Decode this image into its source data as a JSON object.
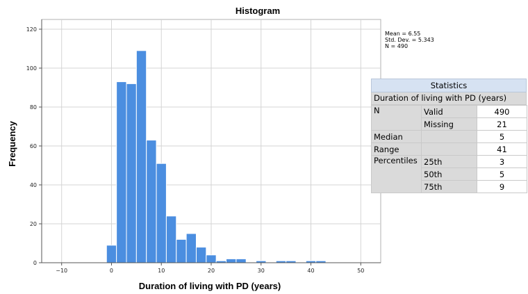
{
  "chart_data": {
    "type": "bar",
    "title": "Histogram",
    "xlabel": "Duration of living with PD (years)",
    "ylabel": "Frequency",
    "xlim": [
      -14,
      54
    ],
    "ylim": [
      0,
      125
    ],
    "xticks": [
      -10,
      0,
      10,
      20,
      30,
      40,
      50
    ],
    "yticks": [
      0,
      20,
      40,
      60,
      80,
      100,
      120
    ],
    "grid": "major, horizontal and vertical",
    "bar_color": "#4b8ee0",
    "bins": [
      {
        "x0": -1,
        "x1": 1,
        "count": 9
      },
      {
        "x0": 1,
        "x1": 3,
        "count": 93
      },
      {
        "x0": 3,
        "x1": 5,
        "count": 92
      },
      {
        "x0": 5,
        "x1": 7,
        "count": 109
      },
      {
        "x0": 7,
        "x1": 9,
        "count": 63
      },
      {
        "x0": 9,
        "x1": 11,
        "count": 51
      },
      {
        "x0": 11,
        "x1": 13,
        "count": 24
      },
      {
        "x0": 13,
        "x1": 15,
        "count": 12
      },
      {
        "x0": 15,
        "x1": 17,
        "count": 15
      },
      {
        "x0": 17,
        "x1": 19,
        "count": 8
      },
      {
        "x0": 19,
        "x1": 21,
        "count": 4
      },
      {
        "x0": 21,
        "x1": 23,
        "count": 1
      },
      {
        "x0": 23,
        "x1": 25,
        "count": 2
      },
      {
        "x0": 25,
        "x1": 27,
        "count": 2
      },
      {
        "x0": 27,
        "x1": 29,
        "count": 0
      },
      {
        "x0": 29,
        "x1": 31,
        "count": 1
      },
      {
        "x0": 31,
        "x1": 33,
        "count": 0
      },
      {
        "x0": 33,
        "x1": 35,
        "count": 1
      },
      {
        "x0": 35,
        "x1": 37,
        "count": 1
      },
      {
        "x0": 37,
        "x1": 39,
        "count": 0
      },
      {
        "x0": 39,
        "x1": 41,
        "count": 1
      },
      {
        "x0": 41,
        "x1": 43,
        "count": 1
      }
    ],
    "summary": [
      "Mean = 6.55",
      "Std. Dev. = 5.343",
      "N = 490"
    ]
  },
  "statistics": {
    "title": "Statistics",
    "variable": "Duration of living with PD (years)",
    "rows": [
      {
        "label": "N",
        "sub": "Valid",
        "value": "490"
      },
      {
        "label": "",
        "sub": "Missing",
        "value": "21"
      },
      {
        "label": "Median",
        "sub": "",
        "value": "5"
      },
      {
        "label": "Range",
        "sub": "",
        "value": "41"
      },
      {
        "label": "Percentiles",
        "sub": "25th",
        "value": "3"
      },
      {
        "label": "",
        "sub": "50th",
        "value": "5"
      },
      {
        "label": "",
        "sub": "75th",
        "value": "9"
      }
    ]
  }
}
